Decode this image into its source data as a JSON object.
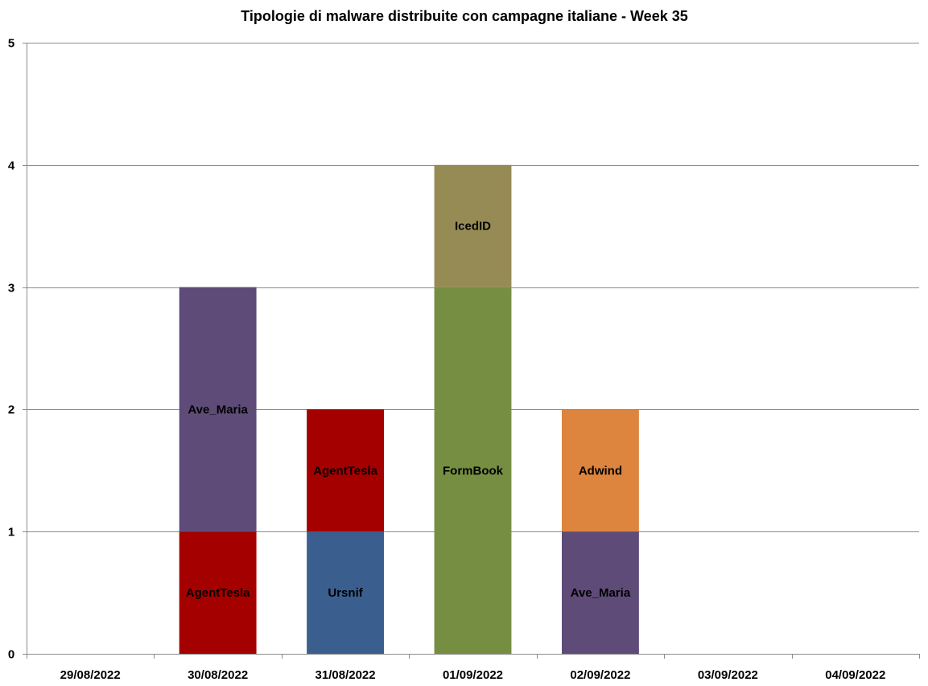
{
  "chart_data": {
    "type": "bar",
    "stacked": true,
    "title": "Tipologie  di malware distribuite con campagne italiane - Week 35",
    "xlabel": "",
    "ylabel": "",
    "ylim": [
      0,
      5
    ],
    "yticks": [
      0,
      1,
      2,
      3,
      4,
      5
    ],
    "grid": true,
    "legend": "none",
    "categories": [
      "29/08/2022",
      "30/08/2022",
      "31/08/2022",
      "01/09/2022",
      "02/09/2022",
      "03/09/2022",
      "04/09/2022"
    ],
    "stacks": [
      {
        "category": "29/08/2022",
        "segments": []
      },
      {
        "category": "30/08/2022",
        "segments": [
          {
            "label": "AgentTesla",
            "value": 1,
            "color": "#A50000"
          },
          {
            "label": "Ave_Maria",
            "value": 2,
            "color": "#5E4B78"
          }
        ]
      },
      {
        "category": "31/08/2022",
        "segments": [
          {
            "label": "Ursnif",
            "value": 1,
            "color": "#3A5F8F"
          },
          {
            "label": "AgentTesla",
            "value": 1,
            "color": "#A50000"
          }
        ]
      },
      {
        "category": "01/09/2022",
        "segments": [
          {
            "label": "FormBook",
            "value": 3,
            "color": "#768E42"
          },
          {
            "label": "IcedID",
            "value": 1,
            "color": "#968B55"
          }
        ]
      },
      {
        "category": "02/09/2022",
        "segments": [
          {
            "label": "Ave_Maria",
            "value": 1,
            "color": "#5E4B78"
          },
          {
            "label": "Adwind",
            "value": 1,
            "color": "#DD843E"
          }
        ]
      },
      {
        "category": "03/09/2022",
        "segments": []
      },
      {
        "category": "04/09/2022",
        "segments": []
      }
    ],
    "colors": {
      "grid": "#8C8C8C",
      "axis": "#8C8C8C"
    }
  }
}
